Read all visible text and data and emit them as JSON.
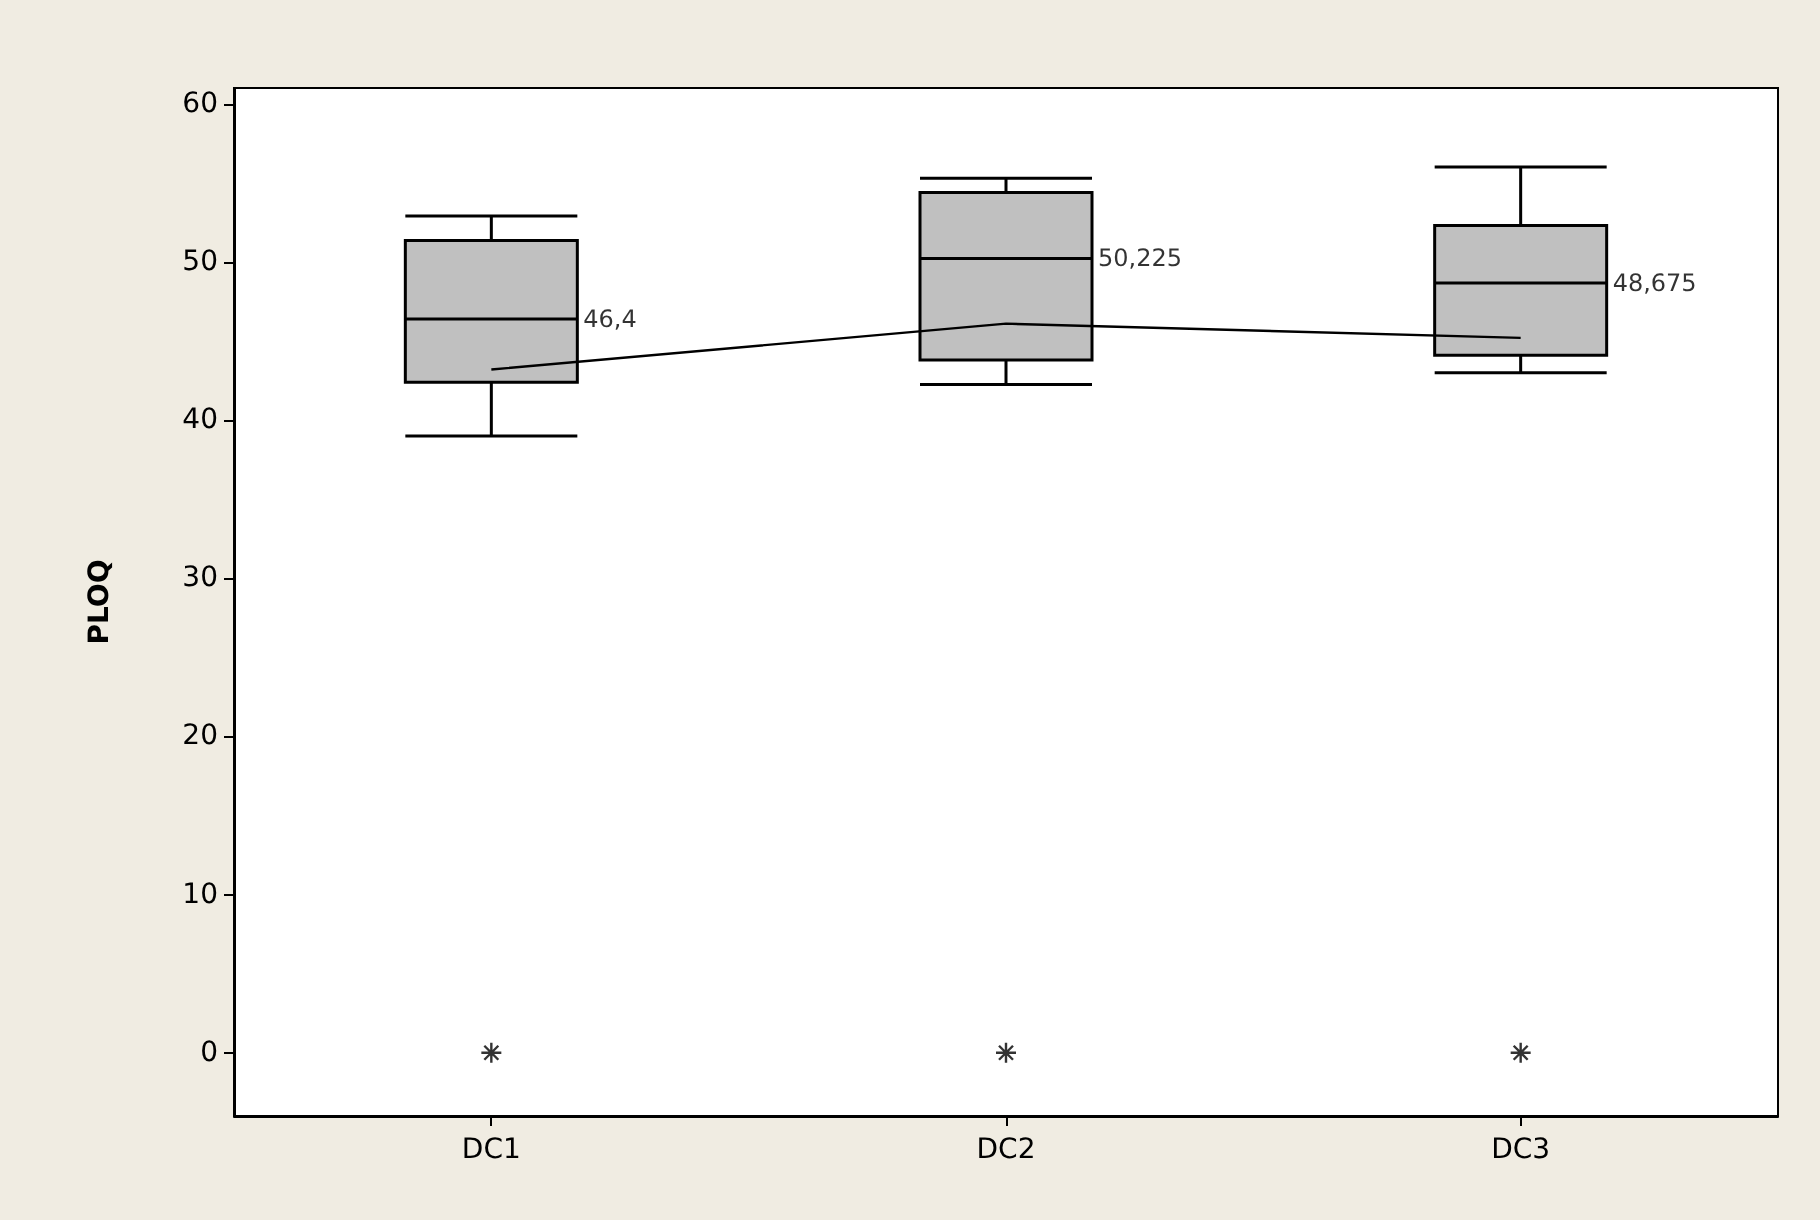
{
  "chart_data": {
    "type": "box",
    "ylabel": "PLOQ",
    "categories": [
      "DC1",
      "DC2",
      "DC3"
    ],
    "ylim": [
      -4,
      61
    ],
    "yticks": [
      0,
      10,
      20,
      30,
      40,
      50,
      60
    ],
    "grid": false,
    "series": [
      {
        "type": "box",
        "color": "#c0c0c0",
        "value_labels": [
          "46,4",
          "50,225",
          "48,675"
        ],
        "boxes": [
          {
            "low": 39.0,
            "q1": 42.4,
            "median": 46.4,
            "q3": 51.35,
            "high": 52.9,
            "outliers": [
              0
            ]
          },
          {
            "low": 42.25,
            "q1": 43.8,
            "median": 50.225,
            "q3": 54.4,
            "high": 55.3,
            "outliers": [
              0
            ]
          },
          {
            "low": 43.0,
            "q1": 44.1,
            "median": 48.675,
            "q3": 52.3,
            "high": 56.0,
            "outliers": [
              0
            ]
          }
        ]
      },
      {
        "type": "line",
        "color": "#000000",
        "marker": "none",
        "values": [
          43.2,
          46.1,
          45.2
        ]
      }
    ]
  }
}
